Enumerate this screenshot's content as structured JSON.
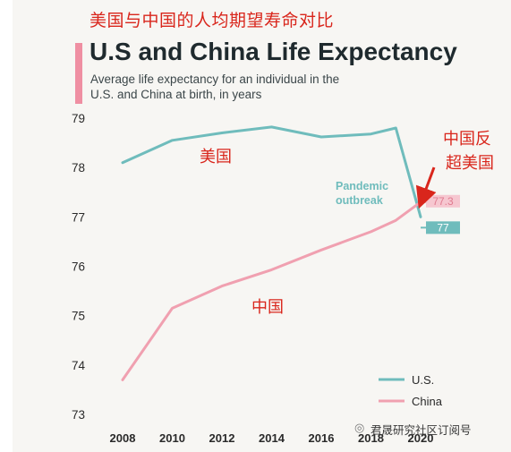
{
  "annotation_top": "美国与中国的人均期望寿命对比",
  "chart_data": {
    "type": "line",
    "title": "U.S and China Life Expectancy",
    "subtitle_line1": "Average life expectancy for an individual in the",
    "subtitle_line2": "U.S. and China at birth, in years",
    "xlabel": "",
    "ylabel": "",
    "x_ticks": [
      "2008",
      "2010",
      "2012",
      "2014",
      "2016",
      "2018",
      "2020"
    ],
    "y_ticks": [
      "73",
      "74",
      "75",
      "76",
      "77",
      "78",
      "79"
    ],
    "xlim": [
      2007.2,
      2021.8
    ],
    "ylim": [
      73,
      79
    ],
    "grid": false,
    "legend_placement": "bottom-right",
    "series": [
      {
        "name": "U.S.",
        "color": "#6fbcbc",
        "x": [
          2008,
          2010,
          2012,
          2014,
          2016,
          2018,
          2019,
          2020
        ],
        "values": [
          78.1,
          78.55,
          78.7,
          78.82,
          78.62,
          78.68,
          78.8,
          77.0
        ],
        "end_label": "77"
      },
      {
        "name": "China",
        "color": "#f0a0b0",
        "x": [
          2008,
          2010,
          2012,
          2014,
          2016,
          2018,
          2019,
          2020
        ],
        "values": [
          73.7,
          75.15,
          75.6,
          75.93,
          76.33,
          76.7,
          76.93,
          77.3
        ],
        "end_label": "77.3"
      }
    ],
    "annotations": {
      "pandemic_line1": "Pandemic",
      "pandemic_line2": "outbreak",
      "us_cn": "美国",
      "china_cn": "中国",
      "overtake_line1": "中国反",
      "overtake_line2": "超美国"
    }
  },
  "watermark": "君晟研究社区订阅号"
}
